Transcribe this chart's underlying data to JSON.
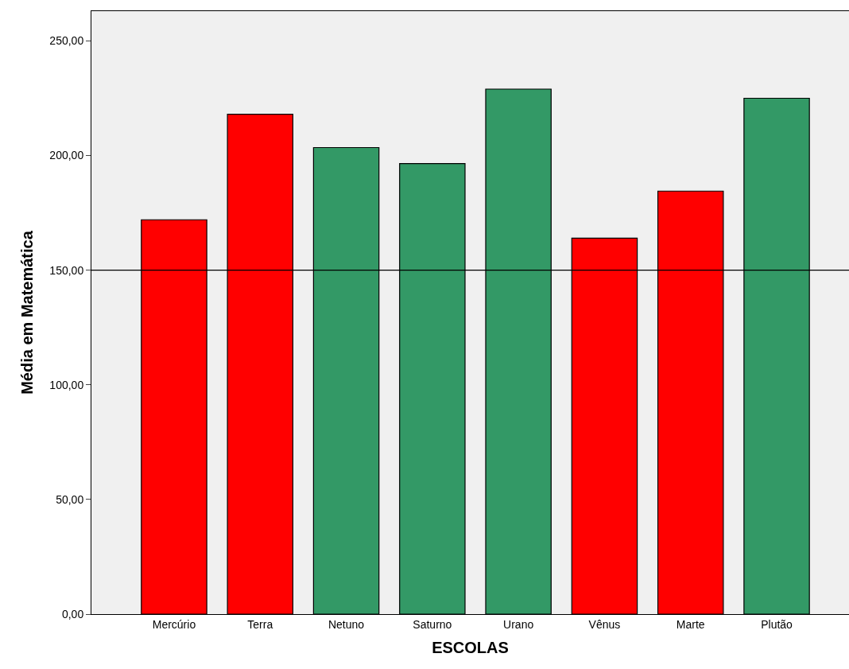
{
  "chart_data": {
    "type": "bar",
    "xlabel": "ESCOLAS",
    "ylabel": "Média em Matemática",
    "categories": [
      "Mercúrio",
      "Terra",
      "Netuno",
      "Saturno",
      "Urano",
      "Vênus",
      "Marte",
      "Plutão"
    ],
    "values": [
      172,
      218,
      203.5,
      196.5,
      229,
      164,
      184.5,
      225
    ],
    "colors": [
      "#ff0000",
      "#ff0000",
      "#339966",
      "#339966",
      "#339966",
      "#ff0000",
      "#ff0000",
      "#339966"
    ],
    "ylim": [
      0,
      263
    ],
    "yticks": [
      {
        "value": 0,
        "label": "0,00"
      },
      {
        "value": 50,
        "label": "50,00"
      },
      {
        "value": 100,
        "label": "100,00"
      },
      {
        "value": 150,
        "label": "150,00"
      },
      {
        "value": 200,
        "label": "200,00"
      },
      {
        "value": 250,
        "label": "250,00"
      }
    ],
    "ref_lines": [
      {
        "axis": "y",
        "value": 150,
        "color": "#000000"
      }
    ],
    "grid": false,
    "legend": false
  }
}
